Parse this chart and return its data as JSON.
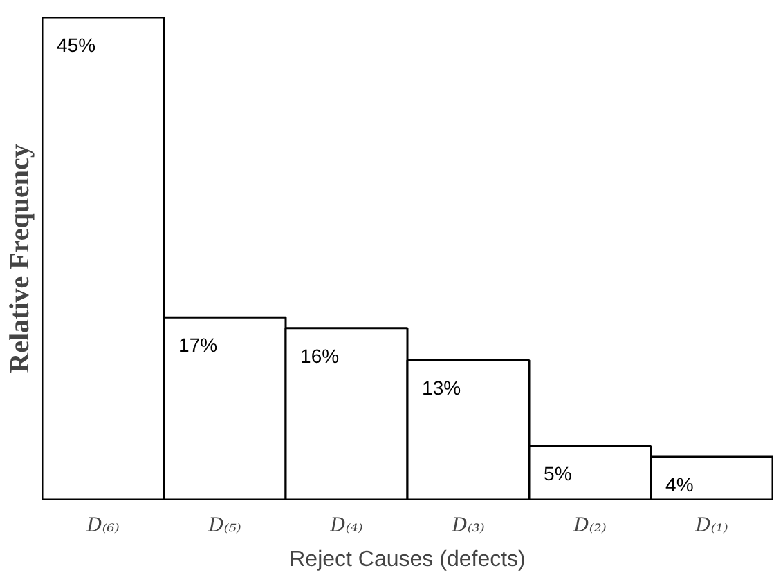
{
  "chart_data": {
    "type": "bar",
    "xlabel": "Reject Causes (defects)",
    "ylabel": "Relative Frequency",
    "categories": [
      "D₍₆₎",
      "D₍₅₎",
      "D₍₄₎",
      "D₍₃₎",
      "D₍₂₎",
      "D₍₁₎"
    ],
    "values": [
      45,
      17,
      16,
      13,
      5,
      4
    ],
    "value_labels": [
      "45%",
      "17%",
      "16%",
      "13%",
      "5%",
      "4%"
    ],
    "color": "#ffffff",
    "grid": false
  }
}
